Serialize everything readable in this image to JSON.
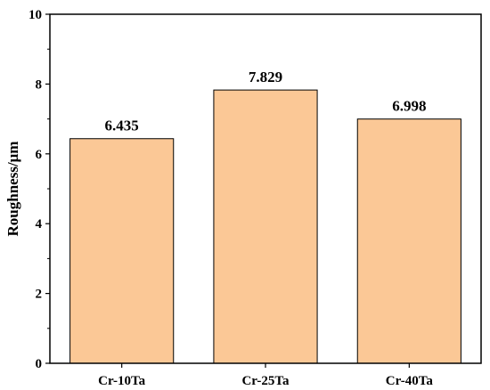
{
  "chart_data": {
    "type": "bar",
    "title": "",
    "xlabel": "",
    "ylabel": "Roughness/μm",
    "categories": [
      "Cr-10Ta",
      "Cr-25Ta",
      "Cr-40Ta"
    ],
    "values": [
      6.435,
      7.829,
      6.998
    ],
    "value_labels": [
      "6.435",
      "7.829",
      "6.998"
    ],
    "ylim": [
      0,
      10
    ],
    "yticks": [
      0,
      2,
      4,
      6,
      8,
      10
    ],
    "ytick_labels": [
      "0",
      "2",
      "4",
      "6",
      "8",
      "10"
    ],
    "grid": false,
    "legend": "none",
    "bar_color": "#fbc896",
    "bar_edge_color": "#000000"
  }
}
